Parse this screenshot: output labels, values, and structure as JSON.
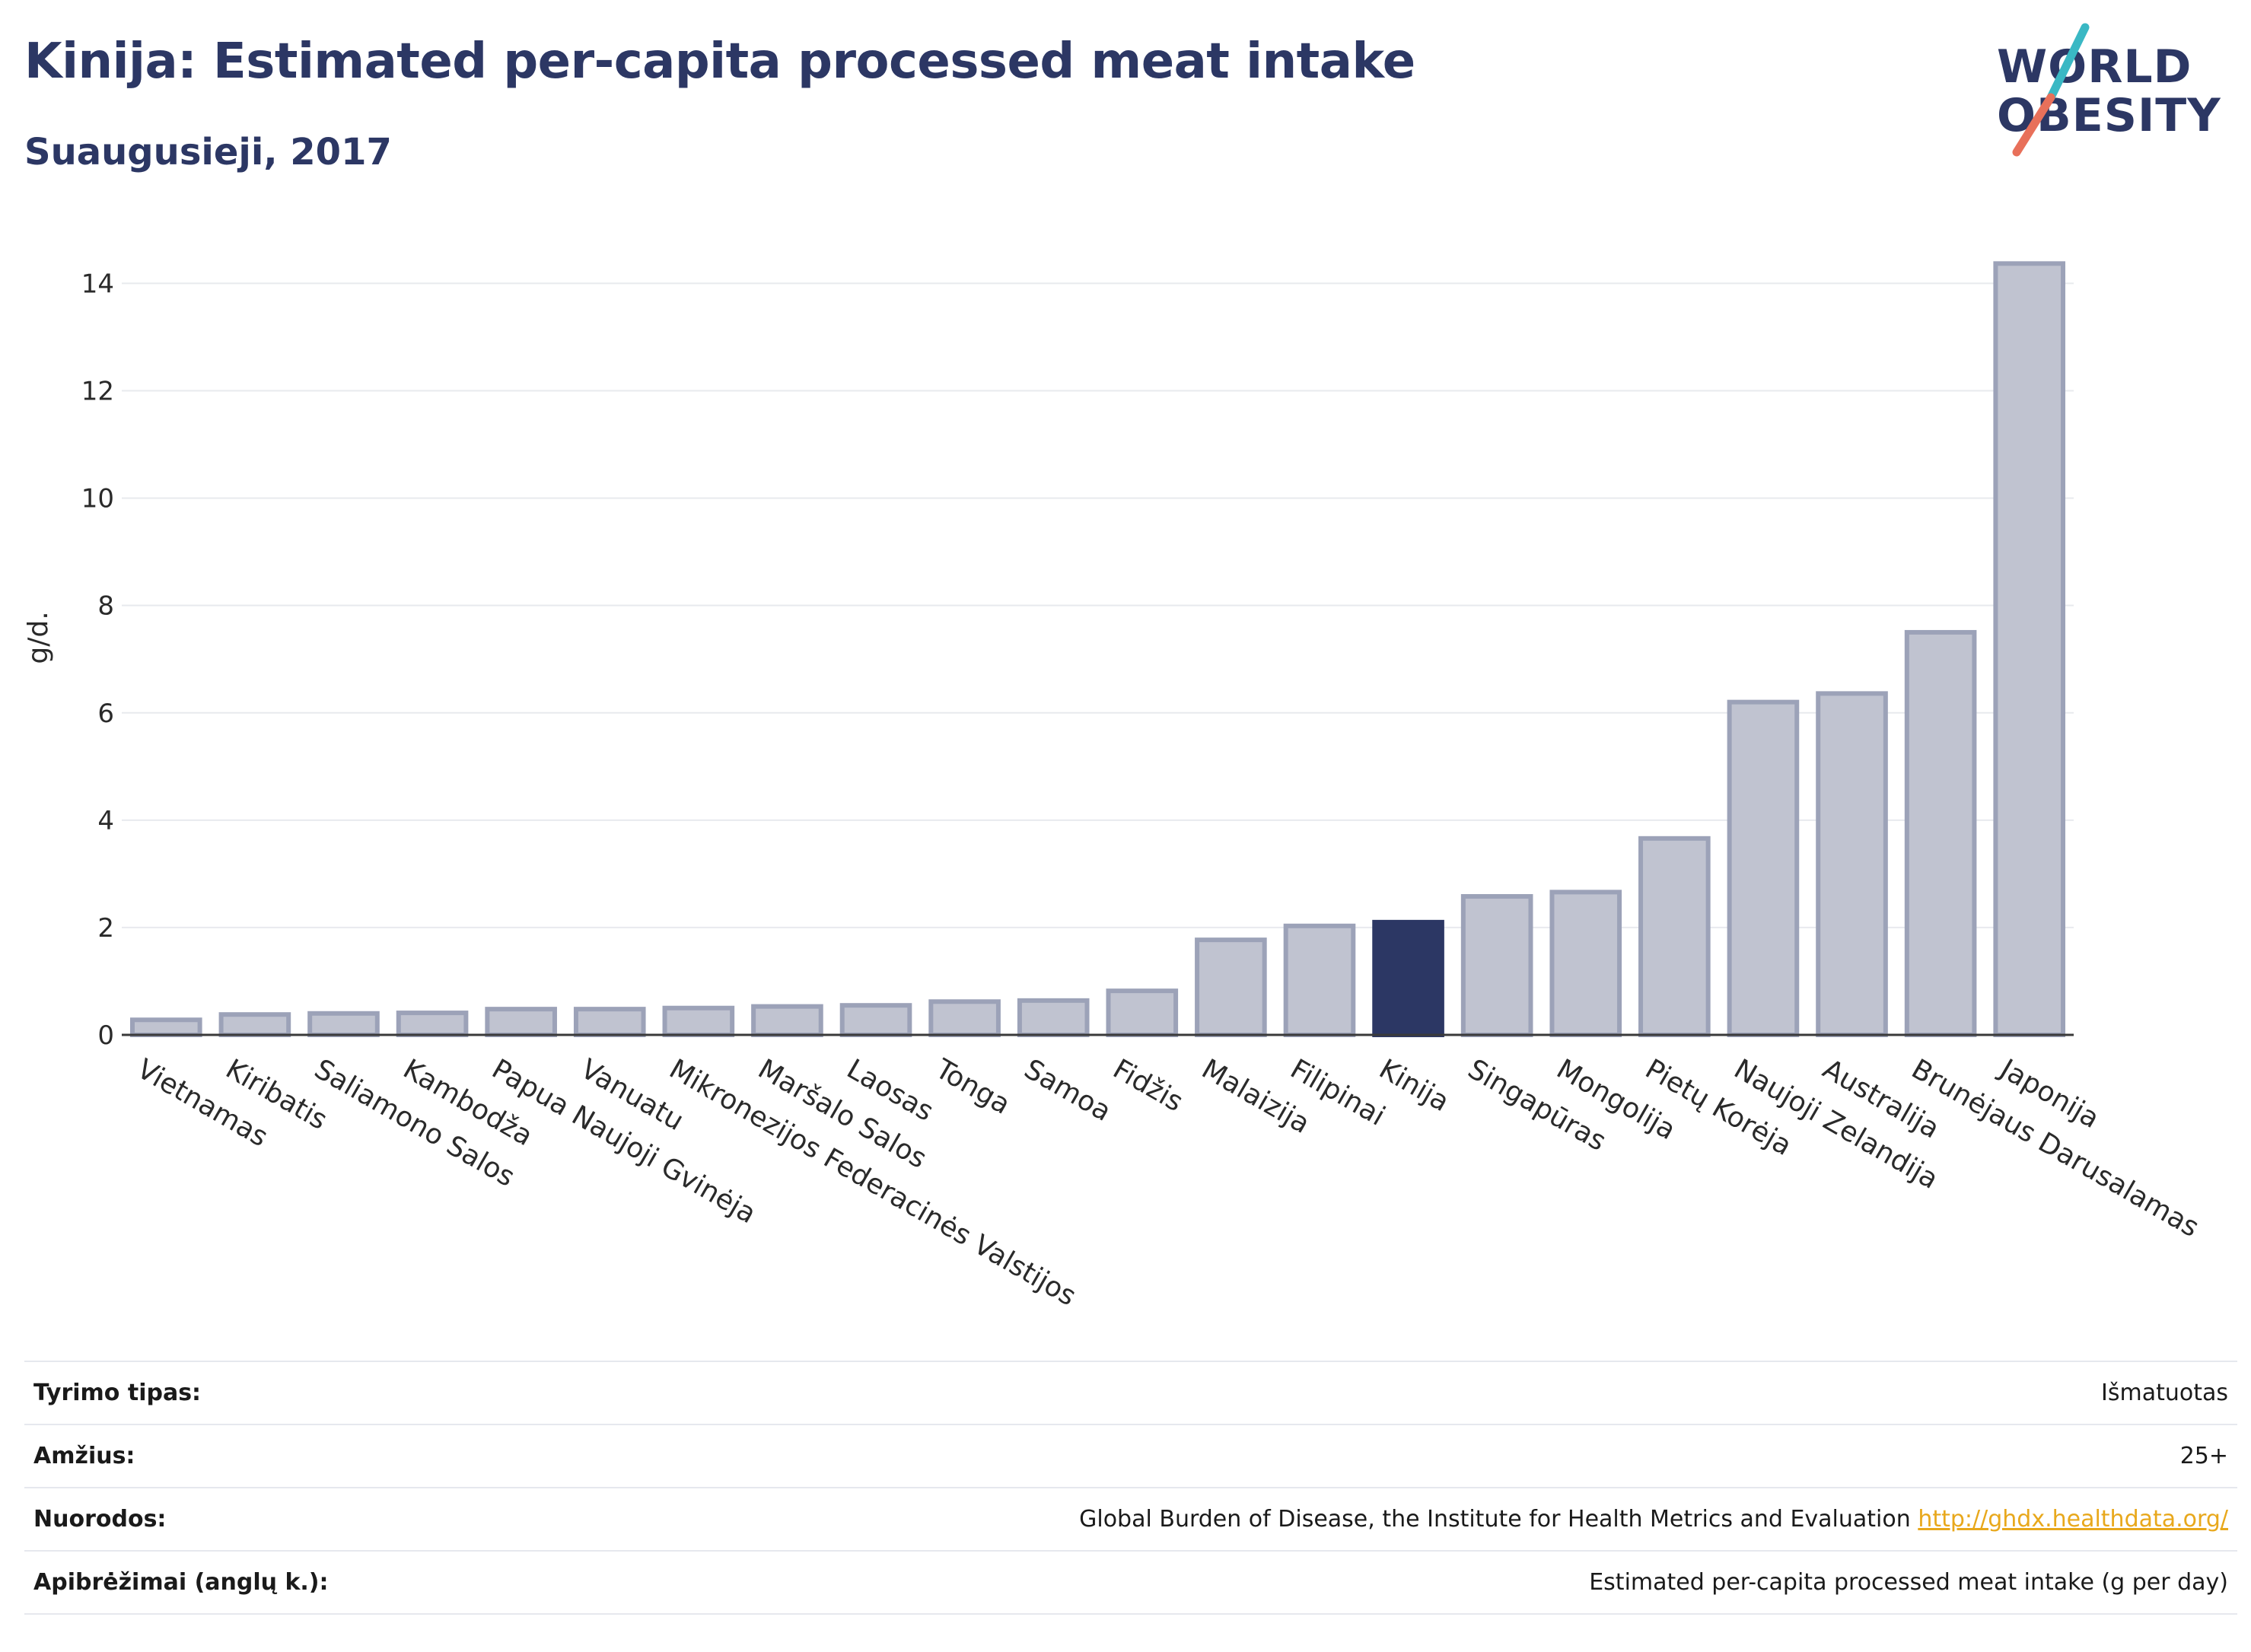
{
  "header": {
    "title": "Kinija: Estimated per-capita processed meat intake",
    "subtitle": "Suaugusieji, 2017"
  },
  "logo": {
    "line1": "WORLD",
    "line2": "OBESITY",
    "slash_colors": [
      "#3ab8c4",
      "#e8705a"
    ]
  },
  "chart_data": {
    "type": "bar",
    "ylabel": "g/d.",
    "xlabel": "",
    "ylim": [
      0,
      14.8
    ],
    "yticks": [
      0,
      2,
      4,
      6,
      8,
      10,
      12,
      14
    ],
    "grid": true,
    "highlight": "Kinija",
    "colors": {
      "bar": "#c0c3d0",
      "bar_edge": "#9ca2b8",
      "highlight": "#2c3764"
    },
    "categories": [
      "Vietnamas",
      "Kiribatis",
      "Saliamono Salos",
      "Kambodža",
      "Papua Naujoji Gvinėja",
      "Vanuatu",
      "Mikronezijos Federacinės Valstijos",
      "Maršalo Salos",
      "Laosas",
      "Tonga",
      "Samoa",
      "Fidžis",
      "Malaizija",
      "Filipinai",
      "Kinija",
      "Singapūras",
      "Mongolija",
      "Pietų Korėja",
      "Naujoji Zelandija",
      "Australija",
      "Brunėjaus Darusalamas",
      "Japonija"
    ],
    "values": [
      0.28,
      0.38,
      0.4,
      0.41,
      0.48,
      0.48,
      0.5,
      0.53,
      0.55,
      0.62,
      0.64,
      0.82,
      1.77,
      2.03,
      2.1,
      2.58,
      2.66,
      3.66,
      6.2,
      6.36,
      7.5,
      14.37
    ]
  },
  "info": [
    {
      "key": "Tyrimo tipas:",
      "value": "Išmatuotas"
    },
    {
      "key": "Amžius:",
      "value": "25+"
    },
    {
      "key": "Nuorodos:",
      "value": "Global Burden of Disease, the Institute for Health Metrics and Evaluation",
      "link": "http://ghdx.healthdata.org/"
    },
    {
      "key": "Apibrėžimai (anglų k.):",
      "value": "Estimated per-capita processed meat intake (g per day)"
    }
  ]
}
